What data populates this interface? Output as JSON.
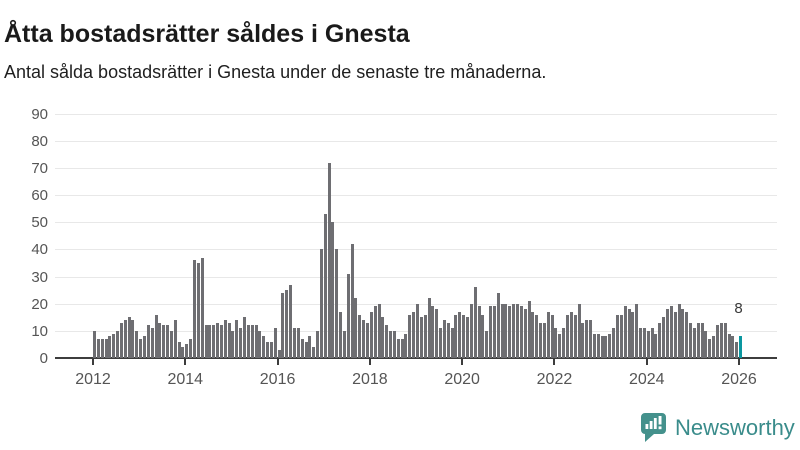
{
  "header": {
    "title": "Åtta bostadsrätter såldes i Gnesta",
    "subtitle": "Antal sålda bostadsrätter i Gnesta under de senaste tre månaderna."
  },
  "annotation": {
    "last_value_label": "8"
  },
  "logo": {
    "text": "Newsworthy",
    "icon": "newsworthy-speech-bubble-bar-chart-icon"
  },
  "colors": {
    "bar": "#6e6e72",
    "highlight": "#0a97a0",
    "axis": "#3d3d3d",
    "grid": "#e8e8e8",
    "tick_label": "#555555",
    "title_text": "#1a1a1a",
    "logo_teal": "#3a8c8b"
  },
  "chart_data": {
    "type": "bar",
    "title": "Åtta bostadsrätter såldes i Gnesta",
    "subtitle": "Antal sålda bostadsrätter i Gnesta under de senaste tre månaderna.",
    "xlabel": "",
    "ylabel": "",
    "ylim": [
      0,
      90
    ],
    "y_ticks": [
      0,
      10,
      20,
      30,
      40,
      50,
      60,
      70,
      80,
      90
    ],
    "x_tick_years": [
      2012,
      2014,
      2016,
      2018,
      2020,
      2022,
      2024,
      2026
    ],
    "grid": true,
    "legend": false,
    "frequency": "monthly",
    "start_month": "2012-01",
    "end_month": "2026-01",
    "highlight_last": true,
    "highlight_last_value": 8,
    "values": [
      10,
      7,
      7,
      7,
      8,
      9,
      10,
      13,
      14,
      15,
      14,
      10,
      7,
      8,
      12,
      11,
      16,
      13,
      12,
      12,
      10,
      14,
      6,
      4,
      5,
      7,
      36,
      35,
      37,
      12,
      12,
      12,
      13,
      12,
      14,
      13,
      10,
      14,
      11,
      15,
      12,
      12,
      12,
      10,
      8,
      6,
      6,
      11,
      3,
      24,
      25,
      27,
      11,
      11,
      7,
      6,
      8,
      4,
      10,
      40,
      53,
      72,
      50,
      40,
      17,
      10,
      31,
      42,
      22,
      16,
      14,
      13,
      17,
      19,
      20,
      15,
      12,
      10,
      10,
      7,
      7,
      9,
      16,
      17,
      20,
      15,
      16,
      22,
      19,
      18,
      11,
      14,
      13,
      11,
      16,
      17,
      16,
      15,
      20,
      26,
      19,
      16,
      10,
      19,
      19,
      24,
      20,
      20,
      19,
      20,
      20,
      19,
      18,
      21,
      17,
      16,
      13,
      13,
      17,
      16,
      11,
      9,
      11,
      16,
      17,
      16,
      20,
      13,
      14,
      14,
      9,
      9,
      8,
      8,
      9,
      11,
      16,
      16,
      19,
      18,
      17,
      20,
      11,
      11,
      10,
      11,
      9,
      13,
      15,
      18,
      19,
      17,
      20,
      18,
      17,
      13,
      11,
      13,
      13,
      10,
      7,
      8,
      12,
      13,
      13,
      9,
      8,
      6,
      8
    ]
  }
}
